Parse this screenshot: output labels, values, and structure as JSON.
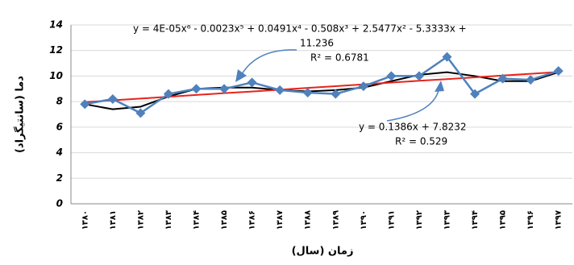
{
  "chart_data": {
    "type": "line",
    "x_label": "زمان (سال)",
    "y_label": "دما (سانتیگراد)",
    "categories": [
      "۱۳۸۰",
      "۱۳۸۱",
      "۱۳۸۲",
      "۱۳۸۳",
      "۱۳۸۴",
      "۱۳۸۵",
      "۱۳۸۶",
      "۱۳۸۷",
      "۱۳۸۸",
      "۱۳۸۹",
      "۱۳۹۰",
      "۱۳۹۱",
      "۱۳۹۲",
      "۱۳۹۳",
      "۱۳۹۴",
      "۱۳۹۵",
      "۱۳۹۶",
      "۱۳۹۷"
    ],
    "series": [
      {
        "color": "#4f81bd",
        "marker": "diamond",
        "values": [
          7.8,
          8.2,
          7.1,
          8.6,
          9.0,
          9.0,
          9.5,
          8.9,
          8.7,
          8.6,
          9.2,
          10.0,
          10.0,
          11.5,
          8.6,
          9.8,
          9.7,
          10.4
        ]
      },
      {
        "color": "#000000",
        "values": [
          7.8,
          7.4,
          7.6,
          8.4,
          9.0,
          9.1,
          9.1,
          8.9,
          8.8,
          8.9,
          9.1,
          9.6,
          10.1,
          10.3,
          10.0,
          9.6,
          9.6,
          10.3
        ]
      },
      {
        "color": "#e8231c",
        "values": [
          7.96,
          8.1,
          8.24,
          8.38,
          8.52,
          8.66,
          8.79,
          8.93,
          9.07,
          9.21,
          9.35,
          9.49,
          9.63,
          9.76,
          9.9,
          10.04,
          10.18,
          10.32
        ]
      }
    ],
    "annotations": [
      "y = 4E-05x⁶ - 0.0023x⁵ + 0.0491x⁴ - 0.508x³ + 2.5477x² - 5.3333x +",
      "11.236",
      "R² = 0.6781",
      "y = 0.1386x + 7.8232",
      "R² = 0.529"
    ],
    "ylim": [
      0,
      14
    ],
    "yticks": [
      0,
      2,
      4,
      6,
      8,
      10,
      12,
      14
    ],
    "grid": true
  }
}
